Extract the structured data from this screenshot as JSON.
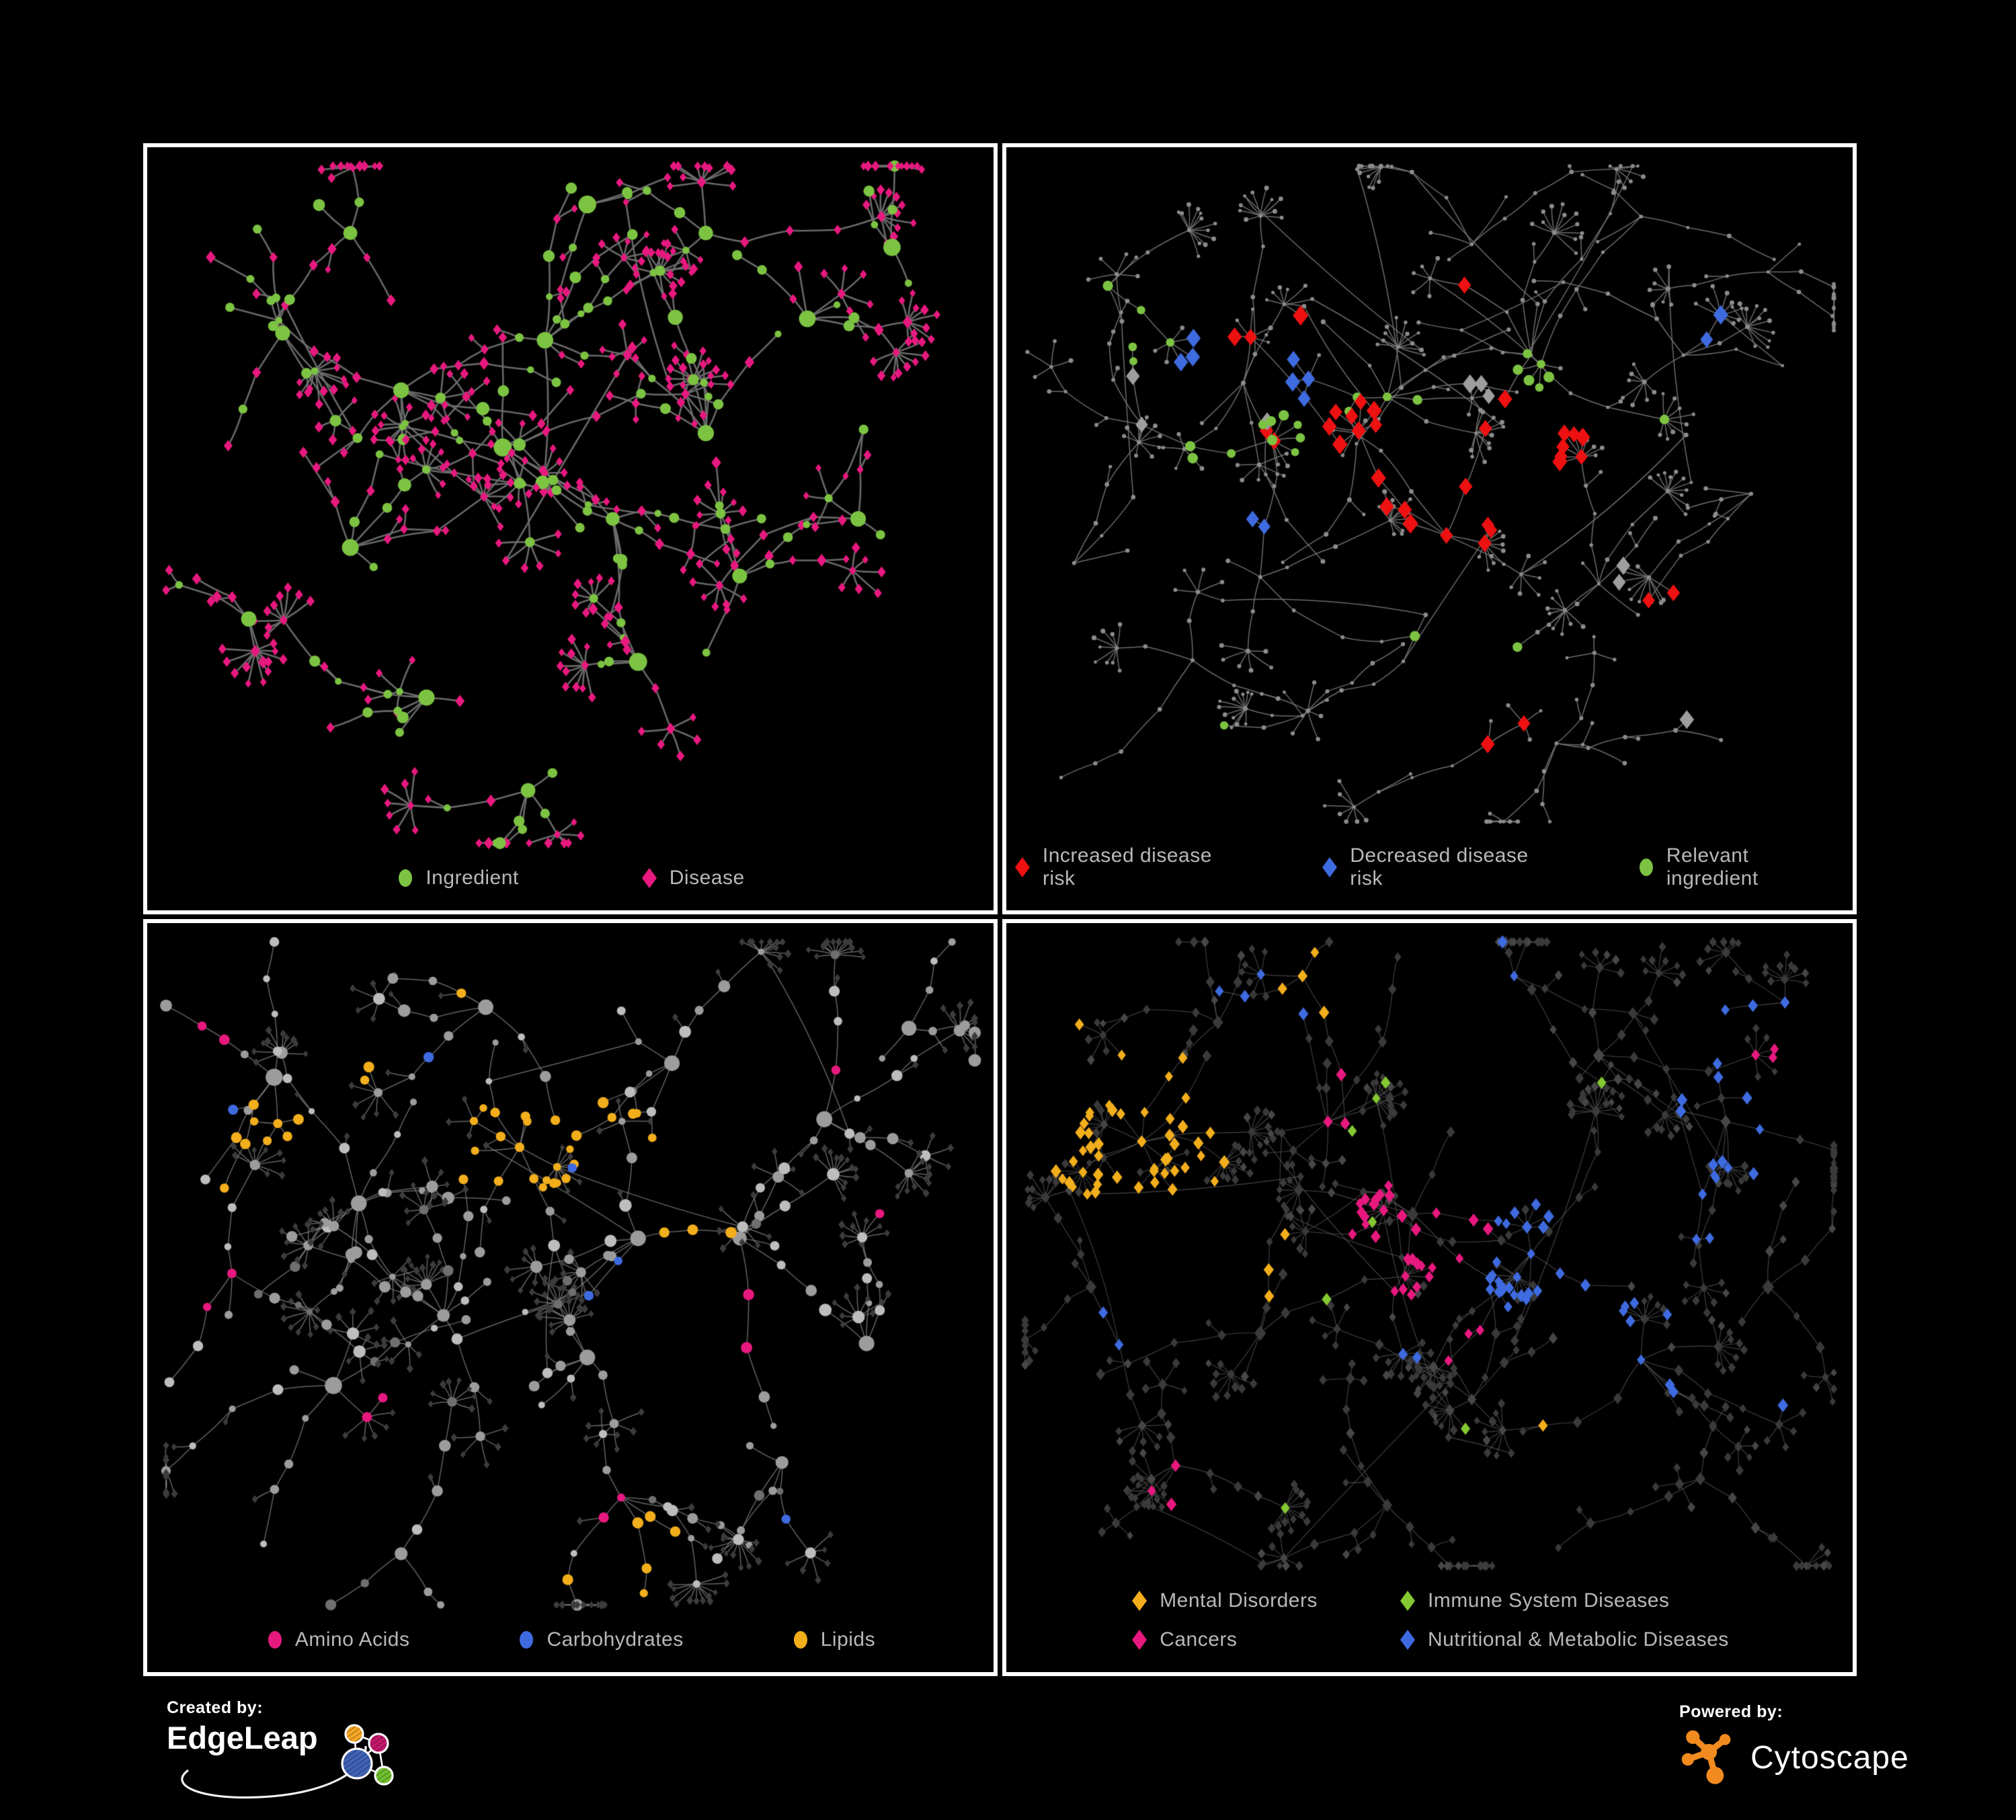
{
  "figure": {
    "background": "#000000",
    "panel_border_color": "#FFFFFF",
    "legend_text_color": "#B8B8B8"
  },
  "panels": [
    {
      "id": "ingredient-disease",
      "position": "top-left",
      "legend": [
        {
          "label": "Ingredient",
          "shape": "circle",
          "color": "#7CC342"
        },
        {
          "label": "Disease",
          "shape": "diamond",
          "color": "#E7197F"
        }
      ],
      "palette": {
        "edge": "#6F6F6F",
        "ingredient": "#7CC342",
        "disease": "#E7197F"
      }
    },
    {
      "id": "disease-risk",
      "position": "top-right",
      "legend": [
        {
          "label": "Increased disease risk",
          "shape": "diamond",
          "color": "#EE1111"
        },
        {
          "label": "Decreased disease risk",
          "shape": "diamond",
          "color": "#3F6BE0"
        },
        {
          "label": "Relevant ingredient",
          "shape": "circle",
          "color": "#7CC342"
        }
      ],
      "palette": {
        "edge": "#7A7A7A",
        "node": "#8C8C8C",
        "increased": "#EE1111",
        "decreased": "#3F6BE0",
        "relevant": "#7CC342",
        "unclassified": "#9E9E9E"
      }
    },
    {
      "id": "nutrient-classes",
      "position": "bottom-left",
      "legend": [
        {
          "label": "Amino Acids",
          "shape": "circle",
          "color": "#E7197F"
        },
        {
          "label": "Carbohydrates",
          "shape": "circle",
          "color": "#3F6BE0"
        },
        {
          "label": "Lipids",
          "shape": "circle",
          "color": "#F3AE1C"
        }
      ],
      "palette": {
        "edge": "#8D8D8D",
        "node": "#9C9C9C",
        "node_light": "#BDBDBD",
        "leaf": "#3C3C3C",
        "amino_acids": "#E7197F",
        "carbohydrates": "#3F6BE0",
        "lipids": "#F3AE1C"
      }
    },
    {
      "id": "disease-classes",
      "position": "bottom-right",
      "legend_columns": 2,
      "legend": [
        {
          "label": "Mental Disorders",
          "shape": "diamond",
          "color": "#F3AE1C"
        },
        {
          "label": "Cancers",
          "shape": "diamond",
          "color": "#E7197F"
        },
        {
          "label": "Immune System Diseases",
          "shape": "diamond",
          "color": "#85C832"
        },
        {
          "label": "Nutritional & Metabolic Diseases",
          "shape": "diamond",
          "color": "#3F6BE0"
        }
      ],
      "palette": {
        "edge": "#6A6A6A",
        "node": "#3A3A3A",
        "node_light": "#474747",
        "mental": "#F3AE1C",
        "cancers": "#E7197F",
        "immune": "#85C832",
        "nutritional": "#3F6BE0"
      }
    }
  ],
  "footer": {
    "created_by_label": "Created by:",
    "created_by_name": "EdgeLeap",
    "powered_by_label": "Powered by:",
    "powered_by_name": "Cytoscape",
    "edgeleap_logo_colors": {
      "orange": "#F5A623",
      "magenta": "#C2186B",
      "blue": "#3F62B5",
      "green": "#6FBE2F",
      "line": "#FFFFFF"
    },
    "cytoscape_logo_color": "#F28B1F"
  }
}
